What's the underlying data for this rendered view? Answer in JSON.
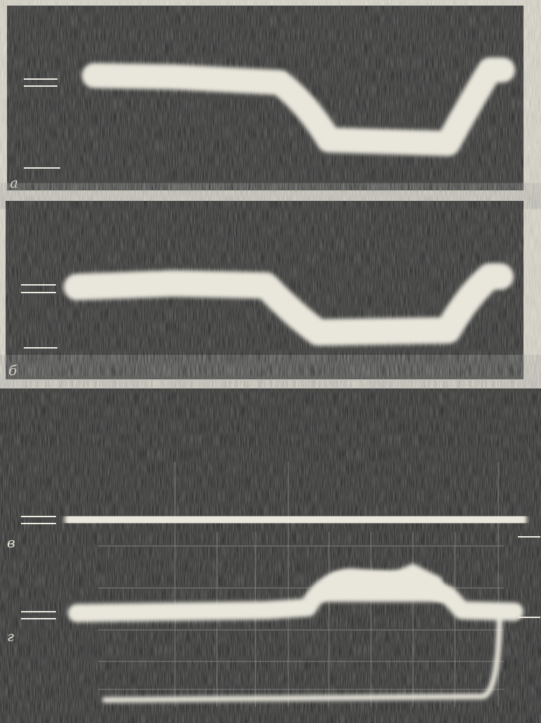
{
  "panels": [
    {
      "label": "а"
    },
    {
      "label": "б"
    },
    {
      "label": "в"
    },
    {
      "label": "г"
    }
  ]
}
